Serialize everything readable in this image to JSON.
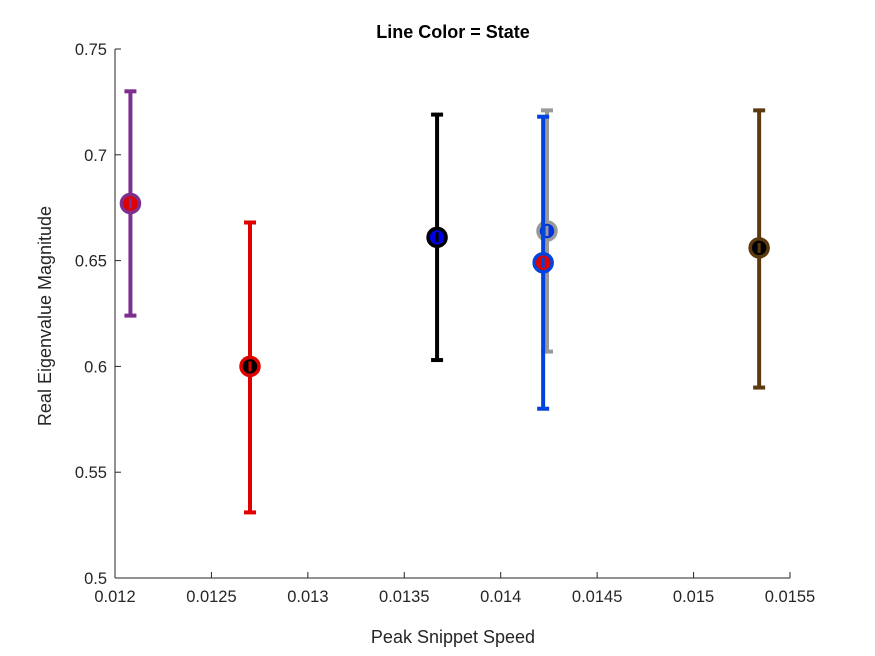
{
  "chart_data": {
    "type": "scatter",
    "title": "Line Color = State",
    "xlabel": "Peak Snippet Speed",
    "ylabel": "Real Eigenvalue Magnitude",
    "xlim": [
      0.012,
      0.0155
    ],
    "ylim": [
      0.5,
      0.75
    ],
    "xticks": [
      "0.012",
      "0.0125",
      "0.013",
      "0.0135",
      "0.014",
      "0.0145",
      "0.015",
      "0.0155"
    ],
    "yticks": [
      "0.5",
      "0.55",
      "0.6",
      "0.65",
      "0.7",
      "0.75"
    ],
    "grid": false,
    "points": [
      {
        "x": 0.01208,
        "y": 0.677,
        "lower": 0.624,
        "upper": 0.73,
        "line_color": "#7E2F8E",
        "marker_color": "#E00000"
      },
      {
        "x": 0.0127,
        "y": 0.6,
        "lower": 0.531,
        "upper": 0.668,
        "line_color": "#E00000",
        "marker_color": "#000000"
      },
      {
        "x": 0.01367,
        "y": 0.661,
        "lower": 0.603,
        "upper": 0.719,
        "line_color": "#000000",
        "marker_color": "#0000E0"
      },
      {
        "x": 0.01424,
        "y": 0.664,
        "lower": 0.607,
        "upper": 0.721,
        "line_color": "#999999",
        "marker_color": "#0033DD"
      },
      {
        "x": 0.01422,
        "y": 0.649,
        "lower": 0.58,
        "upper": 0.718,
        "line_color": "#0044DD",
        "marker_color": "#E00000"
      },
      {
        "x": 0.01534,
        "y": 0.656,
        "lower": 0.59,
        "upper": 0.721,
        "line_color": "#5C3A0F",
        "marker_color": "#000000"
      }
    ]
  }
}
